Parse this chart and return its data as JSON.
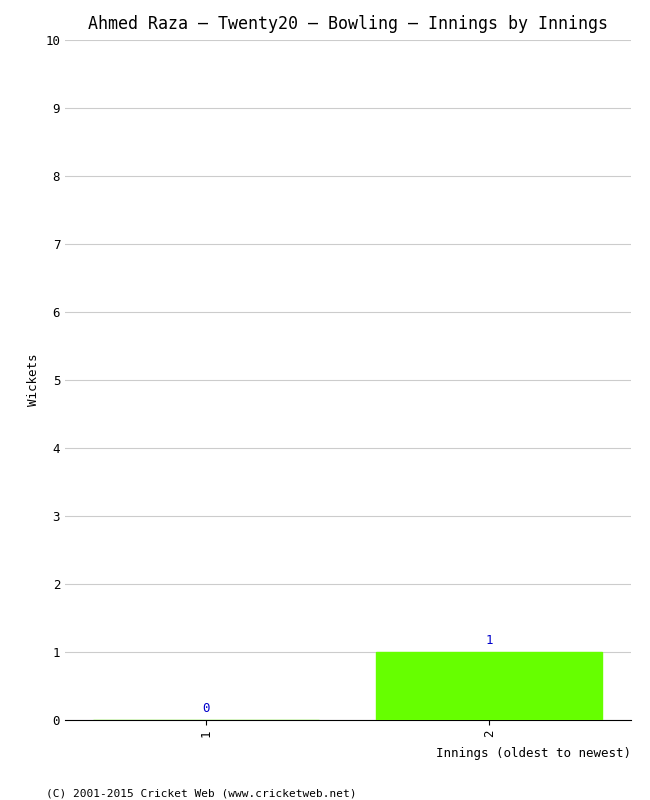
{
  "title": "Ahmed Raza – Twenty20 – Bowling – Innings by Innings",
  "xlabel": "Innings (oldest to newest)",
  "ylabel": "Wickets",
  "categories": [
    1,
    2
  ],
  "values": [
    0,
    1
  ],
  "bar_color": "#66ff00",
  "ylim": [
    0,
    10
  ],
  "yticks": [
    0,
    1,
    2,
    3,
    4,
    5,
    6,
    7,
    8,
    9,
    10
  ],
  "xticks": [
    1,
    2
  ],
  "value_labels": [
    "0",
    "1"
  ],
  "footer": "(C) 2001-2015 Cricket Web (www.cricketweb.net)",
  "background_color": "#ffffff",
  "plot_bg_color": "#ffffff",
  "grid_color": "#cccccc",
  "bar_width": 0.8,
  "title_fontsize": 12,
  "label_fontsize": 9,
  "tick_fontsize": 9,
  "annotation_color": "#0000cc",
  "annotation_fontsize": 9,
  "footer_fontsize": 8
}
